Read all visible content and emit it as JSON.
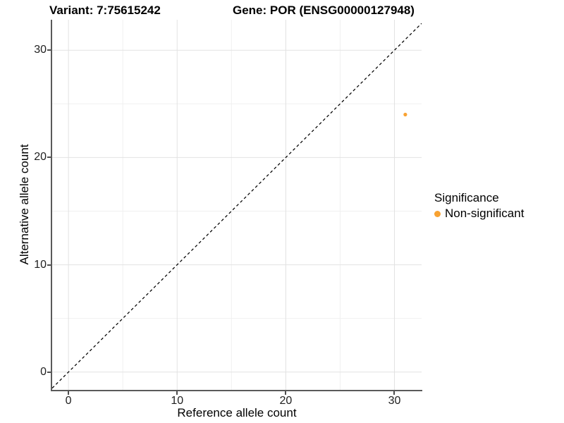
{
  "titles": {
    "variant": "Variant: 7:75615242",
    "gene": "Gene: POR (ENSG00000127948)"
  },
  "chart_data": {
    "type": "scatter",
    "title_left": "Variant: 7:75615242",
    "title_right": "Gene: POR (ENSG00000127948)",
    "xlabel": "Reference allele count",
    "ylabel": "Alternative allele count",
    "xlim": [
      -1.5,
      32.5
    ],
    "ylim": [
      -1.66,
      32.84
    ],
    "x_ticks": [
      0,
      10,
      20,
      30
    ],
    "y_ticks": [
      0,
      10,
      20,
      30
    ],
    "grid": {
      "major": true,
      "minor": true
    },
    "identity_line": {
      "style": "dashed",
      "points": [
        [
          -1.5,
          -1.5
        ],
        [
          32.5,
          32.5
        ]
      ],
      "color": "#000000"
    },
    "series": [
      {
        "name": "Non-significant",
        "color": "#F8A232",
        "points": [
          [
            31,
            24
          ]
        ],
        "point_radius": 2.6
      }
    ],
    "legend": {
      "title": "Significance",
      "position": "right",
      "items": [
        {
          "label": "Non-significant",
          "color": "#F8A232"
        }
      ]
    }
  },
  "colors": {
    "grid_major": "#e2e2e2",
    "grid_minor": "#f0f0f0",
    "axis_line": "#5a5a5a",
    "tick_mark": "#4d4d4d",
    "tick_label": "#1f1f1f"
  }
}
